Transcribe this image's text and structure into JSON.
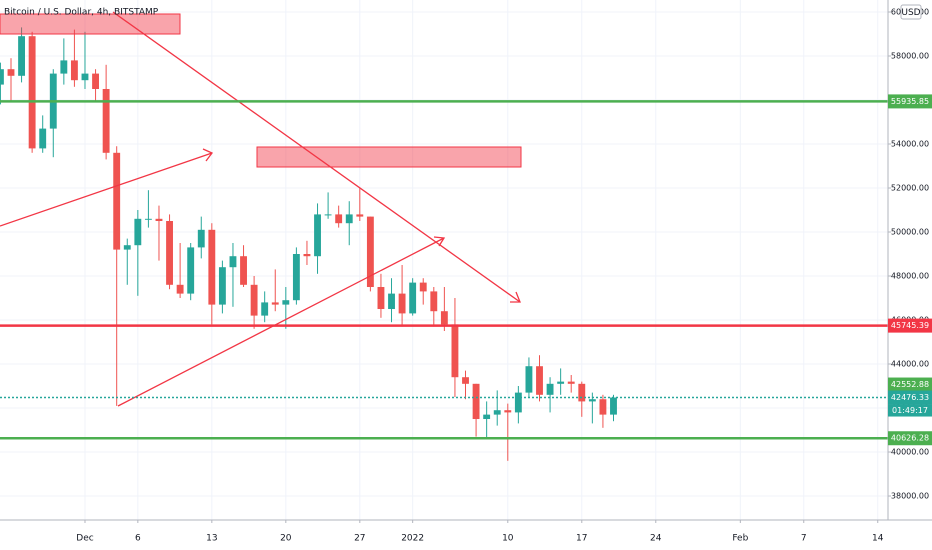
{
  "chart_data": {
    "type": "candlestick",
    "title": "Bitcoin / U.S. Dollar, 4h, BITSTAMP",
    "currency": "USD",
    "up_color": "#26a69a",
    "down_color": "#ef5350",
    "x": [
      -8,
      -7,
      -6,
      -5,
      -4,
      -3,
      -2,
      -1,
      0,
      1,
      2,
      3,
      4,
      5,
      6,
      7,
      8,
      9,
      10,
      11,
      12,
      13,
      14,
      15,
      16,
      17,
      18,
      19,
      20,
      21,
      22,
      23,
      24,
      25,
      26,
      27,
      28,
      29,
      30,
      31,
      32,
      33,
      34,
      35,
      36,
      37,
      38,
      39,
      40,
      41,
      42,
      43,
      44,
      45,
      46,
      47,
      48,
      49,
      50
    ],
    "open": [
      56700,
      57400,
      57100,
      58900,
      53800,
      54700,
      57200,
      57800,
      56900,
      57200,
      56500,
      53600,
      49200,
      49400,
      50600,
      50600,
      50500,
      47600,
      47200,
      49300,
      50100,
      46700,
      48400,
      48900,
      47600,
      46200,
      46800,
      46700,
      46900,
      49000,
      48900,
      50800,
      50800,
      50400,
      50800,
      50700,
      47500,
      46500,
      47200,
      46300,
      47700,
      47300,
      46400,
      45800,
      43400,
      43100,
      41500,
      41700,
      41900,
      41800,
      42700,
      43900,
      42600,
      43100,
      43200,
      43100,
      42300,
      42400,
      41700
    ],
    "high": [
      57700,
      57900,
      59300,
      59100,
      55300,
      57400,
      58800,
      59200,
      59100,
      57400,
      57600,
      53900,
      49700,
      51000,
      51900,
      51200,
      50800,
      49500,
      49500,
      50700,
      50400,
      48700,
      49500,
      49400,
      48000,
      47300,
      48300,
      47500,
      49300,
      49600,
      51300,
      51800,
      51200,
      51400,
      52000,
      50700,
      48100,
      47900,
      48500,
      47900,
      47900,
      47500,
      47500,
      47000,
      43700,
      43100,
      42300,
      42800,
      42200,
      43000,
      44300,
      44400,
      43400,
      43800,
      43500,
      43200,
      42700,
      42600,
      42600
    ],
    "low": [
      55800,
      55900,
      56800,
      53600,
      53600,
      53400,
      56700,
      56600,
      56500,
      55900,
      53300,
      42100,
      47600,
      47100,
      50200,
      48700,
      47400,
      47000,
      46900,
      48800,
      45800,
      46300,
      46600,
      47500,
      45600,
      45900,
      46400,
      45600,
      46700,
      48500,
      48100,
      50600,
      50200,
      49400,
      50500,
      47300,
      46100,
      45900,
      45700,
      46200,
      46700,
      45700,
      45500,
      42500,
      42400,
      40700,
      40600,
      41200,
      39600,
      41300,
      42500,
      42300,
      41800,
      42600,
      42700,
      41600,
      41300,
      41100,
      41400
    ],
    "close": [
      57400,
      57100,
      58900,
      53800,
      54700,
      57200,
      57800,
      56900,
      57200,
      56500,
      53600,
      49200,
      49400,
      50600,
      50600,
      50500,
      47600,
      47200,
      49300,
      50100,
      46700,
      48400,
      48900,
      47600,
      46200,
      46800,
      46700,
      46900,
      49000,
      48900,
      50800,
      50800,
      50400,
      50800,
      50700,
      47500,
      46500,
      47200,
      46300,
      47700,
      47300,
      46400,
      45800,
      43400,
      43100,
      41500,
      41700,
      41900,
      41800,
      42700,
      43900,
      42600,
      43100,
      43200,
      43100,
      42300,
      42400,
      41700,
      42476.33
    ],
    "xlim": [
      -8.04,
      75.97
    ],
    "xticks": [
      {
        "value": 0,
        "label": "Dec"
      },
      {
        "value": 5,
        "label": "6"
      },
      {
        "value": 12,
        "label": "13"
      },
      {
        "value": 19,
        "label": "20"
      },
      {
        "value": 26,
        "label": "27"
      },
      {
        "value": 31,
        "label": "2022"
      },
      {
        "value": 40,
        "label": "10"
      },
      {
        "value": 47,
        "label": "17"
      },
      {
        "value": 54,
        "label": "24"
      },
      {
        "value": 62,
        "label": "Feb"
      },
      {
        "value": 68,
        "label": "7"
      },
      {
        "value": 75,
        "label": "14"
      }
    ],
    "ylim": [
      36910,
      60545
    ],
    "yticks": [
      {
        "value": 38000,
        "label": "38000.00"
      },
      {
        "value": 40000,
        "label": "40000.00"
      },
      {
        "value": 42000,
        "label": "42000.00"
      },
      {
        "value": 44000,
        "label": "44000.00"
      },
      {
        "value": 46000,
        "label": "46000.00"
      },
      {
        "value": 48000,
        "label": "48000.00"
      },
      {
        "value": 50000,
        "label": "50000.00"
      },
      {
        "value": 52000,
        "label": "52000.00"
      },
      {
        "value": 54000,
        "label": "54000.00"
      },
      {
        "value": 56000,
        "label": "56000.00"
      },
      {
        "value": 58000,
        "label": "58000.00"
      },
      {
        "value": 60000,
        "label": "60000.00"
      }
    ],
    "grid": true,
    "levels": [
      {
        "value": 55935.85,
        "color": "#4caf50"
      },
      {
        "value": 45745.39,
        "color": "#f23645"
      },
      {
        "value": 40626.28,
        "color": "#4caf50"
      }
    ],
    "last_price": {
      "value": 42476.33,
      "color": "#26a69a",
      "countdown": "01:49:17"
    },
    "prev_price": {
      "value": 42552.88,
      "color": "#4caf50"
    }
  }
}
